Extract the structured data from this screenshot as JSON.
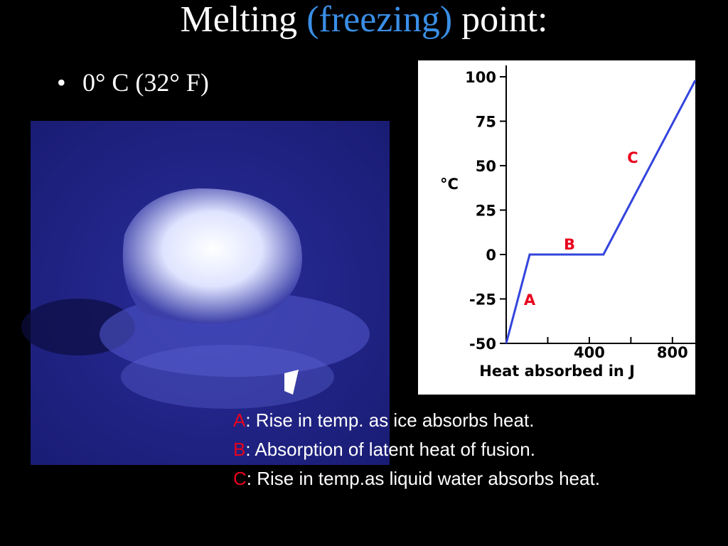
{
  "title": {
    "parts": [
      "Melting",
      "(freezing)",
      "point:"
    ]
  },
  "bullets": [
    "0° C (32° F)"
  ],
  "chart_data": {
    "type": "line",
    "x": [
      0,
      113,
      468,
      910
    ],
    "values": [
      -50,
      0,
      0,
      98
    ],
    "color": "#3344dd",
    "xlim": [
      0,
      910
    ],
    "ylim": [
      -50,
      100
    ],
    "xticks": [
      400,
      800
    ],
    "xminorticks": [
      200,
      600
    ],
    "yticks": [
      -50,
      -25,
      0,
      25,
      50,
      75,
      100
    ],
    "ylabel": "°C",
    "xlabel": "Heat absorbed in J",
    "annotations": [
      "A",
      "B",
      "C"
    ],
    "annotation_color": "#e8001c"
  },
  "notes": [
    {
      "letter": "A",
      "text": ": Rise in temp. as ice absorbs heat."
    },
    {
      "letter": "B",
      "text": ": Absorption of latent heat of fusion."
    },
    {
      "letter": "C",
      "text": ": Rise in temp.as liquid water absorbs heat."
    }
  ]
}
